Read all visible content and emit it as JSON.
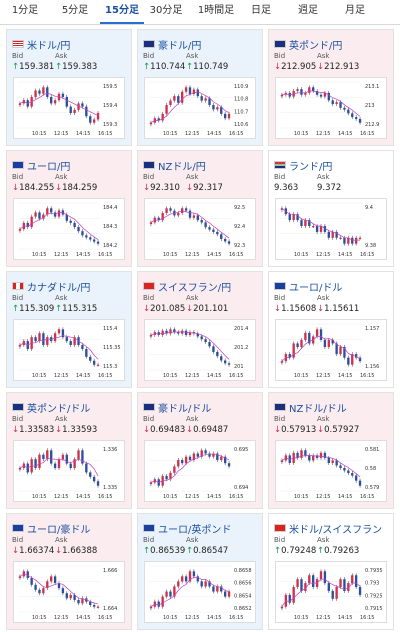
{
  "tabs": [
    {
      "label": "1分足",
      "active": false
    },
    {
      "label": "5分足",
      "active": false
    },
    {
      "label": "15分足",
      "active": true
    },
    {
      "label": "30分足",
      "active": false
    },
    {
      "label": "1時間足",
      "active": false
    },
    {
      "label": "日足",
      "active": false
    },
    {
      "label": "週足",
      "active": false
    },
    {
      "label": "月足",
      "active": false
    }
  ],
  "labels": {
    "bid": "Bid",
    "ask": "Ask"
  },
  "colors": {
    "up": "#1a9a4a",
    "down": "#d0304a",
    "candle_up": "#d0304a",
    "candle_down": "#2a4fa0",
    "ma": "#c040c0",
    "tab_accent": "#2a6fd0"
  },
  "x_ticks": [
    "10:15",
    "12:15",
    "14:15",
    "16:15"
  ],
  "cards": [
    {
      "pair": "米ドル/円",
      "flag": "us",
      "state": "up",
      "dir": "up",
      "bid": "159.381",
      "ask": "159.383",
      "y_ticks": [
        "159.5",
        "159.4",
        "159.3"
      ],
      "series": [
        159.41,
        159.42,
        159.4,
        159.43,
        159.45,
        159.44,
        159.46,
        159.43,
        159.41,
        159.42,
        159.44,
        159.43,
        159.4,
        159.38,
        159.39,
        159.41,
        159.4,
        159.37,
        159.35,
        159.36,
        159.38
      ]
    },
    {
      "pair": "豪ドル/円",
      "flag": "au",
      "state": "up",
      "dir": "up",
      "bid": "110.744",
      "ask": "110.749",
      "y_ticks": [
        "110.9",
        "110.8",
        "110.7",
        "110.6"
      ],
      "series": [
        110.7,
        110.72,
        110.71,
        110.74,
        110.78,
        110.8,
        110.82,
        110.79,
        110.84,
        110.86,
        110.83,
        110.85,
        110.82,
        110.8,
        110.81,
        110.78,
        110.76,
        110.77,
        110.74,
        110.72,
        110.74
      ]
    },
    {
      "pair": "英ポンド/円",
      "flag": "uk",
      "state": "down",
      "dir": "down",
      "bid": "212.905",
      "ask": "212.913",
      "y_ticks": [
        "213.1",
        "213",
        "212.9"
      ],
      "series": [
        213.05,
        213.06,
        213.04,
        213.07,
        213.08,
        213.05,
        213.06,
        213.09,
        213.07,
        213.05,
        213.04,
        213.06,
        213.02,
        213.0,
        213.01,
        212.98,
        212.97,
        212.95,
        212.93,
        212.92,
        212.9
      ]
    },
    {
      "pair": "ユーロ/円",
      "flag": "eu",
      "state": "down",
      "dir": "down",
      "bid": "184.255",
      "ask": "184.259",
      "y_ticks": [
        "184.4",
        "184.3",
        "184.2"
      ],
      "series": [
        184.32,
        184.35,
        184.33,
        184.38,
        184.4,
        184.37,
        184.39,
        184.42,
        184.4,
        184.38,
        184.41,
        184.39,
        184.36,
        184.35,
        184.33,
        184.31,
        184.29,
        184.28,
        184.27,
        184.26,
        184.25
      ]
    },
    {
      "pair": "NZドル/円",
      "flag": "nz",
      "state": "down",
      "dir": "down",
      "bid": "92.310",
      "ask": "92.317",
      "y_ticks": [
        "92.5",
        "92.4",
        "92.3"
      ],
      "series": [
        92.4,
        92.42,
        92.41,
        92.44,
        92.46,
        92.45,
        92.43,
        92.44,
        92.46,
        92.45,
        92.42,
        92.43,
        92.41,
        92.4,
        92.38,
        92.37,
        92.36,
        92.35,
        92.33,
        92.32,
        92.31
      ]
    },
    {
      "pair": "ランド/円",
      "flag": "za",
      "state": "flat",
      "dir": "none",
      "bid": "9.363",
      "ask": "9.372",
      "y_ticks": [
        "9.4",
        "9.38"
      ],
      "series": [
        9.41,
        9.4,
        9.39,
        9.4,
        9.39,
        9.38,
        9.39,
        9.38,
        9.38,
        9.37,
        9.38,
        9.37,
        9.36,
        9.37,
        9.36,
        9.36,
        9.35,
        9.36,
        9.35,
        9.36,
        9.36
      ]
    },
    {
      "pair": "カナダドル/円",
      "flag": "ca",
      "state": "up",
      "dir": "up",
      "bid": "115.309",
      "ask": "115.315",
      "y_ticks": [
        "115.4",
        "115.35",
        "115.3"
      ],
      "series": [
        115.36,
        115.37,
        115.35,
        115.38,
        115.37,
        115.39,
        115.36,
        115.38,
        115.37,
        115.39,
        115.4,
        115.38,
        115.37,
        115.36,
        115.38,
        115.36,
        115.35,
        115.33,
        115.32,
        115.31,
        115.31
      ]
    },
    {
      "pair": "スイスフラン/円",
      "flag": "ch",
      "state": "down",
      "dir": "down",
      "bid": "201.085",
      "ask": "201.101",
      "y_ticks": [
        "201.4",
        "201.2",
        "201"
      ],
      "series": [
        201.3,
        201.32,
        201.3,
        201.33,
        201.31,
        201.34,
        201.32,
        201.31,
        201.33,
        201.3,
        201.32,
        201.31,
        201.29,
        201.27,
        201.25,
        201.22,
        201.18,
        201.15,
        201.12,
        201.1,
        201.09
      ]
    },
    {
      "pair": "ユーロ/ドル",
      "flag": "eu",
      "state": "flat",
      "dir": "down",
      "bid": "1.15608",
      "ask": "1.15611",
      "y_ticks": [
        "1.157",
        "1.156"
      ],
      "series": [
        1.1561,
        1.1563,
        1.1562,
        1.1566,
        1.1565,
        1.1567,
        1.1569,
        1.1566,
        1.1568,
        1.157,
        1.1567,
        1.1565,
        1.1567,
        1.1566,
        1.1563,
        1.1565,
        1.1562,
        1.156,
        1.1563,
        1.1562,
        1.1561
      ]
    },
    {
      "pair": "英ポンド/ドル",
      "flag": "uk",
      "state": "down",
      "dir": "down",
      "bid": "1.33583",
      "ask": "1.33593",
      "y_ticks": [
        "1.336",
        "1.335"
      ],
      "series": [
        1.3362,
        1.3363,
        1.3361,
        1.3364,
        1.3362,
        1.3365,
        1.3364,
        1.3366,
        1.3363,
        1.3362,
        1.3364,
        1.3365,
        1.3363,
        1.3362,
        1.3364,
        1.3366,
        1.3363,
        1.3361,
        1.336,
        1.3359,
        1.3358
      ]
    },
    {
      "pair": "豪ドル/ドル",
      "flag": "au",
      "state": "down",
      "dir": "down",
      "bid": "0.69483",
      "ask": "0.69487",
      "y_ticks": [
        "0.695",
        "0.694"
      ],
      "series": [
        0.6943,
        0.6944,
        0.6942,
        0.6945,
        0.6944,
        0.6946,
        0.6948,
        0.695,
        0.6949,
        0.6951,
        0.695,
        0.6952,
        0.6951,
        0.6953,
        0.6952,
        0.6951,
        0.6952,
        0.695,
        0.6951,
        0.6949,
        0.6948
      ]
    },
    {
      "pair": "NZドル/ドル",
      "flag": "nz",
      "state": "down",
      "dir": "down",
      "bid": "0.57913",
      "ask": "0.57927",
      "y_ticks": [
        "0.581",
        "0.58",
        "0.579"
      ],
      "series": [
        0.5801,
        0.5803,
        0.58,
        0.5804,
        0.5802,
        0.5805,
        0.5803,
        0.5801,
        0.5803,
        0.5802,
        0.5804,
        0.5802,
        0.58,
        0.5801,
        0.5799,
        0.5798,
        0.5797,
        0.5796,
        0.5795,
        0.5793,
        0.5791
      ]
    },
    {
      "pair": "ユーロ/豪ドル",
      "flag": "eu",
      "state": "down",
      "dir": "down",
      "bid": "1.66374",
      "ask": "1.66388",
      "y_ticks": [
        "1.666",
        "1.664"
      ],
      "series": [
        1.6655,
        1.6658,
        1.6654,
        1.665,
        1.6647,
        1.6645,
        1.6648,
        1.6652,
        1.6655,
        1.6651,
        1.6648,
        1.6645,
        1.6642,
        1.6644,
        1.6641,
        1.6639,
        1.6642,
        1.664,
        1.6638,
        1.6637,
        1.6637
      ]
    },
    {
      "pair": "ユーロ/英ポンド",
      "flag": "eu",
      "state": "up",
      "dir": "up",
      "bid": "0.86539",
      "ask": "0.86547",
      "y_ticks": [
        "0.8658",
        "0.8656",
        "0.8654",
        "0.8652"
      ],
      "series": [
        0.8651,
        0.8652,
        0.8651,
        0.8653,
        0.8654,
        0.8653,
        0.8655,
        0.8656,
        0.8657,
        0.8656,
        0.8658,
        0.8657,
        0.8656,
        0.8655,
        0.8656,
        0.8655,
        0.8654,
        0.8655,
        0.8654,
        0.8653,
        0.8654
      ]
    },
    {
      "pair": "米ドル/スイスフラン",
      "flag": "ch",
      "state": "flat",
      "dir": "up",
      "bid": "0.79248",
      "ask": "0.79263",
      "y_ticks": [
        "0.7935",
        "0.793",
        "0.7925",
        "0.7915"
      ],
      "series": [
        0.7922,
        0.7925,
        0.7923,
        0.7927,
        0.7929,
        0.7926,
        0.7928,
        0.793,
        0.7927,
        0.7929,
        0.7931,
        0.7928,
        0.7926,
        0.7924,
        0.7927,
        0.7929,
        0.7926,
        0.7928,
        0.793,
        0.7927,
        0.7925
      ]
    }
  ]
}
